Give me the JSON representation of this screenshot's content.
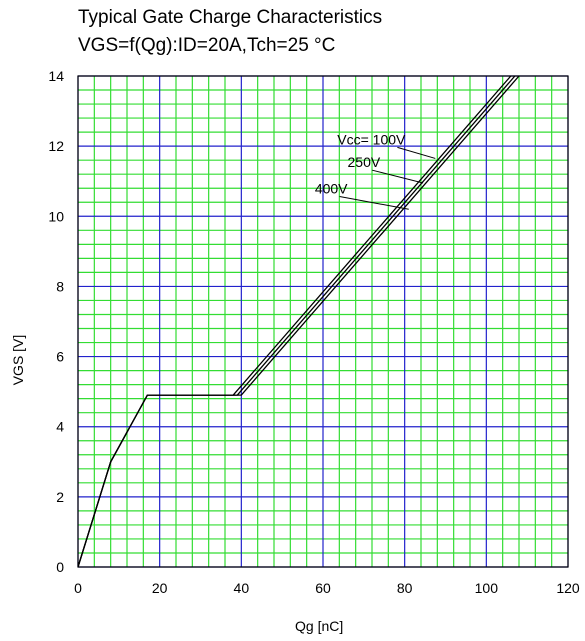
{
  "chart_data": {
    "type": "line",
    "title": "Typical Gate Charge Characteristics",
    "subtitle": "VGS=f(Qg):ID=20A,Tch=25 °C",
    "xlabel": "Qg [nC]",
    "ylabel": "VGS [V]",
    "xlim": [
      0,
      120
    ],
    "ylim": [
      0,
      14
    ],
    "x_ticks": [
      0,
      20,
      40,
      60,
      80,
      100,
      120
    ],
    "y_ticks": [
      0,
      2,
      4,
      6,
      8,
      10,
      12,
      14
    ],
    "x_minor_step": 4,
    "y_minor_step": 0.4,
    "grid": true,
    "colors": {
      "minor_grid": "#33dd33",
      "major_grid": "#2222cc",
      "lines": "#000000",
      "frame": "#000000"
    },
    "series": [
      {
        "name": "Vcc= 100V",
        "x": [
          0,
          8,
          17,
          38,
          106
        ],
        "y": [
          0,
          3,
          4.9,
          4.9,
          14.0
        ]
      },
      {
        "name": "250V",
        "x": [
          0,
          8,
          17,
          39,
          107
        ],
        "y": [
          0,
          3,
          4.9,
          4.9,
          14.0
        ]
      },
      {
        "name": "400V",
        "x": [
          0,
          8,
          17,
          40,
          108
        ],
        "y": [
          0,
          3,
          4.9,
          4.9,
          14.0
        ]
      }
    ],
    "annotations": [
      {
        "text": "Vcc= 100V",
        "label_at": [
          63.5,
          12.05
        ],
        "arrow_to": [
          87.5,
          11.65
        ]
      },
      {
        "text": "250V",
        "label_at": [
          66,
          11.4
        ],
        "arrow_to": [
          84.5,
          10.95
        ]
      },
      {
        "text": "400V",
        "label_at": [
          58,
          10.65
        ],
        "arrow_to": [
          81,
          10.2
        ]
      }
    ]
  }
}
